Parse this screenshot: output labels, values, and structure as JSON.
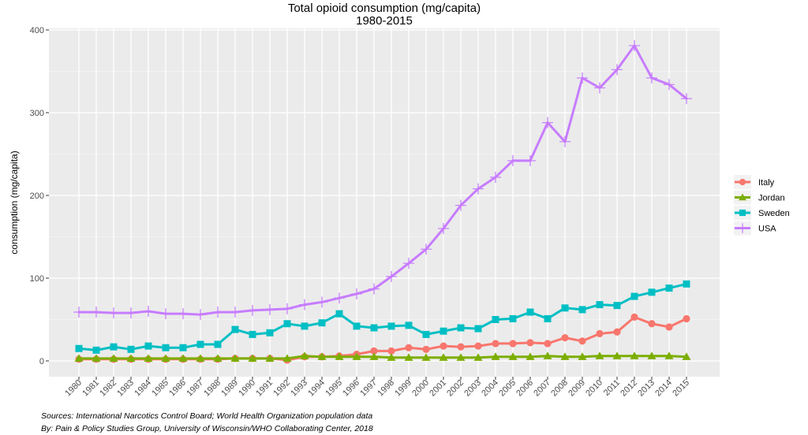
{
  "chart_data": {
    "type": "line",
    "title": "Total opioid consumption (mg/capita)",
    "subtitle": "1980-2015",
    "xlabel": "",
    "ylabel": "consumption (mg/capita)",
    "ylim": [
      0,
      400
    ],
    "yticks": [
      0,
      100,
      200,
      300,
      400
    ],
    "grid": true,
    "legend_position": "right",
    "legend_title": "",
    "categories": [
      "1980",
      "1981",
      "1982",
      "1983",
      "1984",
      "1985",
      "1986",
      "1987",
      "1988",
      "1989",
      "1990",
      "1991",
      "1992",
      "1993",
      "1994",
      "1995",
      "1996",
      "1997",
      "1998",
      "1999",
      "2000",
      "2001",
      "2002",
      "2003",
      "2004",
      "2005",
      "2006",
      "2007",
      "2008",
      "2009",
      "2010",
      "2011",
      "2012",
      "2013",
      "2014",
      "2015"
    ],
    "series": [
      {
        "name": "Italy",
        "color": "#F8766D",
        "marker": "circle",
        "values": [
          2,
          2,
          2,
          2,
          2,
          2,
          2,
          2,
          2,
          3,
          3,
          3,
          1,
          5,
          5,
          6,
          8,
          12,
          12,
          16,
          14,
          18,
          17,
          18,
          21,
          21,
          22,
          21,
          28,
          24,
          33,
          35,
          53,
          45,
          41,
          51
        ]
      },
      {
        "name": "Jordan",
        "color": "#7CAE00",
        "marker": "triangle",
        "values": [
          3,
          3,
          3,
          3,
          3,
          3,
          3,
          3,
          3,
          3,
          3,
          3,
          3,
          6,
          5,
          5,
          5,
          5,
          4,
          4,
          4,
          4,
          4,
          4,
          5,
          5,
          5,
          6,
          5,
          5,
          6,
          6,
          6,
          6,
          6,
          5
        ]
      },
      {
        "name": "Sweden",
        "color": "#00BFC4",
        "marker": "square",
        "values": [
          15,
          13,
          17,
          14,
          18,
          16,
          16,
          20,
          20,
          38,
          32,
          34,
          45,
          42,
          46,
          57,
          42,
          40,
          42,
          43,
          32,
          36,
          40,
          39,
          50,
          51,
          59,
          51,
          64,
          62,
          68,
          67,
          78,
          83,
          88,
          93
        ]
      },
      {
        "name": "USA",
        "color": "#C77CFF",
        "marker": "plus",
        "values": [
          59,
          59,
          58,
          58,
          60,
          57,
          57,
          56,
          59,
          59,
          61,
          62,
          63,
          68,
          71,
          76,
          81,
          87,
          102,
          118,
          135,
          160,
          188,
          208,
          222,
          242,
          242,
          288,
          265,
          342,
          330,
          352,
          381,
          342,
          334,
          317
        ]
      }
    ]
  },
  "footer": {
    "sources": "Sources: International Narcotics Control Board; World Health Organization population data",
    "by": "By: Pain & Policy Studies Group, University of Wisconsin/WHO Collaborating Center, 2018"
  }
}
